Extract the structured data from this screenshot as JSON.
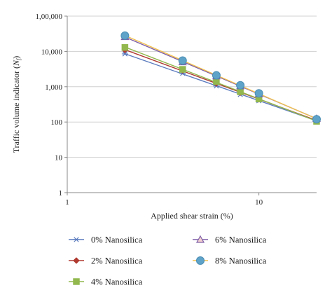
{
  "chart_data": {
    "type": "line",
    "title": "",
    "xlabel": "Applied shear strain (%)",
    "ylabel": "Traffic volume indicator (Nf)",
    "ylabel_main": "Traffic volume indicator (",
    "ylabel_italic": "N",
    "ylabel_sub": "f",
    "ylabel_close": ")",
    "x_scale": "log",
    "y_scale": "log",
    "xlim": [
      1,
      20
    ],
    "ylim": [
      1,
      100000
    ],
    "x_ticks": [
      1,
      10
    ],
    "x_tick_labels": [
      "1",
      "10"
    ],
    "y_ticks": [
      1,
      10,
      100,
      1000,
      10000,
      100000
    ],
    "y_tick_labels": [
      "1",
      "10",
      "100",
      "1,000",
      "10,000",
      "1,00,000"
    ],
    "grid": "horizontal",
    "legend_position": "bottom",
    "x": [
      2,
      4,
      6,
      8,
      10,
      20
    ],
    "series": [
      {
        "name": "0% Nanosilica",
        "values": [
          8500,
          2400,
          1050,
          600,
          400,
          110
        ],
        "color": "#5b7bbf",
        "marker": "star"
      },
      {
        "name": "2% Nanosilica",
        "values": [
          11000,
          2900,
          1250,
          680,
          440,
          112
        ],
        "color": "#b03a30",
        "marker": "diamond"
      },
      {
        "name": "4% Nanosilica",
        "values": [
          13000,
          3100,
          1400,
          720,
          450,
          105
        ],
        "color": "#92b84e",
        "marker": "square"
      },
      {
        "name": "6% Nanosilica",
        "values": [
          26000,
          5000,
          2000,
          1050,
          620,
          125
        ],
        "color": "#7e5fa8",
        "marker": "triangle"
      },
      {
        "name": "8% Nanosilica",
        "values": [
          28000,
          5500,
          2100,
          1100,
          650,
          120
        ],
        "color": "#f2c14e",
        "marker": "circle"
      }
    ]
  }
}
